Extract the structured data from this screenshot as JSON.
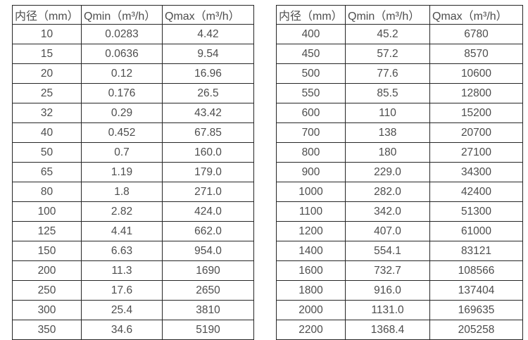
{
  "page": {
    "background_color": "#ffffff",
    "text_color": "#4d4d4d",
    "border_color": "#262626"
  },
  "chart_data": [
    {
      "type": "table",
      "title": "",
      "columns": [
        "内径（mm）",
        "Qmin（m³/h）",
        "Qmax（m³/h）"
      ],
      "rows": [
        [
          "10",
          "0.0283",
          "4.42"
        ],
        [
          "15",
          "0.0636",
          "9.54"
        ],
        [
          "20",
          "0.12",
          "16.96"
        ],
        [
          "25",
          "0.176",
          "26.5"
        ],
        [
          "32",
          "0.29",
          "43.42"
        ],
        [
          "40",
          "0.452",
          "67.85"
        ],
        [
          "50",
          "0.7",
          "160.0"
        ],
        [
          "65",
          "1.19",
          "179.0"
        ],
        [
          "80",
          "1.8",
          "271.0"
        ],
        [
          "100",
          "2.82",
          "424.0"
        ],
        [
          "125",
          "4.41",
          "662.0"
        ],
        [
          "150",
          "6.63",
          "954.0"
        ],
        [
          "200",
          "11.3",
          "1690"
        ],
        [
          "250",
          "17.6",
          "2650"
        ],
        [
          "300",
          "25.4",
          "3810"
        ],
        [
          "350",
          "34.6",
          "5190"
        ]
      ]
    },
    {
      "type": "table",
      "title": "",
      "columns": [
        "内径（mm）",
        "Qmin（m³/h）",
        "Qmax（m³/h）"
      ],
      "rows": [
        [
          "400",
          "45.2",
          "6780"
        ],
        [
          "450",
          "57.2",
          "8570"
        ],
        [
          "500",
          "77.6",
          "10600"
        ],
        [
          "550",
          "85.5",
          "12800"
        ],
        [
          "600",
          "110",
          "15200"
        ],
        [
          "700",
          "138",
          "20700"
        ],
        [
          "800",
          "180",
          "27100"
        ],
        [
          "900",
          "229.0",
          "34300"
        ],
        [
          "1000",
          "282.0",
          "42400"
        ],
        [
          "1100",
          "342.0",
          "51300"
        ],
        [
          "1200",
          "407.0",
          "61000"
        ],
        [
          "1400",
          "554.1",
          "83121"
        ],
        [
          "1600",
          "732.7",
          "108566"
        ],
        [
          "1800",
          "916.0",
          "137404"
        ],
        [
          "2000",
          "1131.0",
          "169635"
        ],
        [
          "2200",
          "1368.4",
          "205258"
        ]
      ]
    }
  ]
}
